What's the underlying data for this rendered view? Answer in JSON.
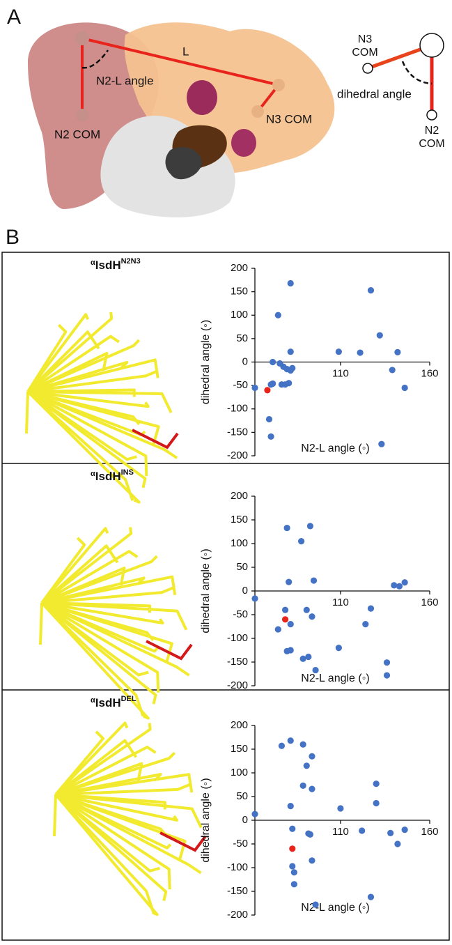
{
  "figure": {
    "panel_a": "A",
    "panel_b": "B",
    "length_label": "L",
    "angle_label": "N2-L angle",
    "n2_com": "N2 COM",
    "n3_com": "N3 COM",
    "schematic": {
      "n3_line1": "N3",
      "n3_line2": "COM",
      "dihedral": "dihedral angle",
      "n2_line1": "N2",
      "n2_line2": "COM"
    }
  },
  "chart_data": [
    {
      "type": "scatter",
      "title": [
        "α",
        "IsdH",
        "N2N3"
      ],
      "xlabel": "N2-L angle (◦)",
      "ylabel": "dihedral angle (◦)",
      "xlim": [
        62,
        160
      ],
      "ylim": [
        -200,
        200
      ],
      "xticks": [
        110,
        160
      ],
      "yticks": [
        200,
        150,
        100,
        50,
        0,
        -50,
        -100,
        -150,
        -200
      ],
      "series": [
        {
          "color": "#4472c4",
          "x": [
            62,
            75,
            71,
            72,
            70,
            71,
            72,
            76,
            78,
            80,
            77,
            79,
            81,
            82,
            83,
            82,
            82,
            109,
            121,
            127,
            132,
            139,
            142,
            146,
            133
          ],
          "values": [
            -55,
            100,
            -48,
            -46,
            -122,
            -159,
            0,
            -3,
            -10,
            -15,
            -48,
            -48,
            -45,
            -18,
            -13,
            22,
            168,
            22,
            20,
            153,
            57,
            -17,
            21,
            -55,
            -175
          ]
        },
        {
          "color": "#e8231b",
          "x": [
            69
          ],
          "values": [
            -60
          ]
        }
      ]
    },
    {
      "type": "scatter",
      "title": [
        "α",
        "IsdH",
        "INS"
      ],
      "xlabel": "N2-L angle (◦)",
      "ylabel": "dihedral angle (◦)",
      "xlim": [
        62,
        160
      ],
      "ylim": [
        -200,
        200
      ],
      "xticks": [
        110,
        160
      ],
      "yticks": [
        200,
        150,
        100,
        50,
        0,
        -50,
        -100,
        -150,
        -200
      ],
      "series": [
        {
          "color": "#4472c4",
          "x": [
            62,
            75,
            79,
            80,
            81,
            82,
            80,
            82,
            88,
            89,
            92,
            93,
            91,
            94,
            95,
            96,
            109,
            124,
            127,
            136,
            136,
            140,
            143,
            146
          ],
          "values": [
            -16,
            -81,
            -40,
            133,
            19,
            -70,
            -127,
            -125,
            105,
            -143,
            -139,
            137,
            -40,
            -54,
            22,
            -167,
            -120,
            -70,
            -37,
            -151,
            -178,
            12,
            10,
            18
          ]
        },
        {
          "color": "#e8231b",
          "x": [
            79
          ],
          "values": [
            -60
          ]
        }
      ]
    },
    {
      "type": "scatter",
      "title": [
        "α",
        "IsdH",
        "DEL"
      ],
      "xlabel": "N2-L angle (◦)",
      "ylabel": "dihedral angle (◦)",
      "xlim": [
        62,
        160
      ],
      "ylim": [
        -200,
        200
      ],
      "xticks": [
        110,
        160
      ],
      "yticks": [
        200,
        150,
        100,
        50,
        0,
        -50,
        -100,
        -150,
        -200
      ],
      "series": [
        {
          "color": "#4472c4",
          "x": [
            62,
            77,
            82,
            82,
            83,
            83,
            84,
            84,
            89,
            89,
            91,
            92,
            93,
            94,
            94,
            94,
            96,
            110,
            122,
            127,
            130,
            130,
            138,
            142,
            146
          ],
          "values": [
            13,
            157,
            168,
            30,
            -18,
            -97,
            -110,
            -135,
            160,
            73,
            115,
            -28,
            -30,
            135,
            66,
            -85,
            -178,
            25,
            -22,
            -162,
            77,
            36,
            -27,
            -50,
            -20
          ]
        },
        {
          "color": "#e8231b",
          "x": [
            83
          ],
          "values": [
            -60
          ]
        }
      ]
    }
  ]
}
